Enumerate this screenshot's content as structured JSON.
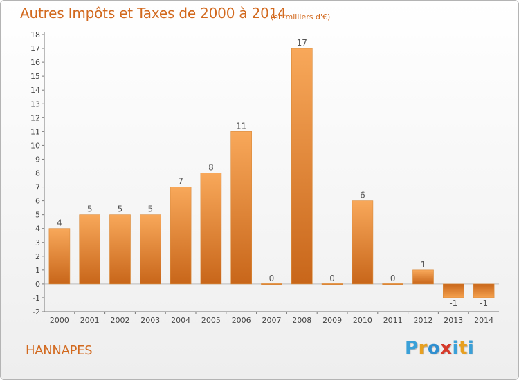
{
  "header": {
    "title": "Autres Impôts et Taxes de 2000 à 2014",
    "unit": "(en milliers d'€)"
  },
  "footer": {
    "location": "HANNAPES",
    "logo_letters": [
      "P",
      "r",
      "o",
      "x",
      "i",
      "t",
      "i"
    ],
    "logo_colors": [
      "#3aa0d8",
      "#e8a020",
      "#2f8fd0",
      "#d63a2a",
      "#3aa0d8",
      "#e8a020",
      "#3aa0d8"
    ]
  },
  "chart_data": {
    "type": "bar",
    "title": "Autres Impôts et Taxes de 2000 à 2014",
    "categories": [
      "2000",
      "2001",
      "2002",
      "2003",
      "2004",
      "2005",
      "2006",
      "2007",
      "2008",
      "2009",
      "2010",
      "2011",
      "2012",
      "2013",
      "2014"
    ],
    "values": [
      4,
      5,
      5,
      5,
      7,
      8,
      11,
      0,
      17,
      0,
      6,
      0,
      1,
      -1,
      -1
    ],
    "ylim": [
      -2,
      18
    ],
    "yticks": [
      -2,
      -1,
      0,
      1,
      2,
      3,
      4,
      5,
      6,
      7,
      8,
      9,
      10,
      11,
      12,
      13,
      14,
      15,
      16,
      17,
      18
    ],
    "grid": false,
    "bar_color": "#f5a14e",
    "bar_color_dark": "#c8661a"
  }
}
